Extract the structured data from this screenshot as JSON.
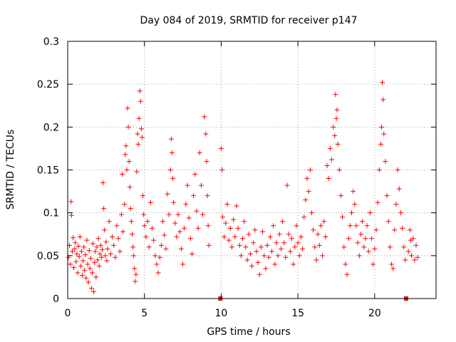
{
  "chart_data": {
    "type": "scatter",
    "title": "Day 084 of 2019, SRMTID for receiver p147",
    "xlabel": "GPS time / hours",
    "ylabel": "SRMTID / TECUs",
    "xlim": [
      0,
      24
    ],
    "ylim": [
      0,
      0.3
    ],
    "xticks": [
      0,
      5,
      10,
      15,
      20
    ],
    "yticks": [
      0,
      0.05,
      0.1,
      0.15,
      0.2,
      0.25,
      0.3
    ],
    "xtick_labels": [
      "0",
      "5",
      "10",
      "15",
      "20"
    ],
    "ytick_labels": [
      "0",
      "0.05",
      "0.1",
      "0.15",
      "0.2",
      "0.25",
      "0.3"
    ],
    "grid": true,
    "marker": "+",
    "color": "#ff0000",
    "gap_markers": [
      {
        "x": 9.95,
        "y": 0
      },
      {
        "x": 22.05,
        "y": 0
      }
    ],
    "series": [
      {
        "name": "SRMTID",
        "points": [
          [
            0.05,
            0.048
          ],
          [
            0.12,
            0.062
          ],
          [
            0.18,
            0.04
          ],
          [
            0.22,
            0.113
          ],
          [
            0.25,
            0.097
          ],
          [
            0.3,
            0.055
          ],
          [
            0.35,
            0.071
          ],
          [
            0.4,
            0.036
          ],
          [
            0.45,
            0.058
          ],
          [
            0.5,
            0.065
          ],
          [
            0.55,
            0.043
          ],
          [
            0.6,
            0.052
          ],
          [
            0.65,
            0.03
          ],
          [
            0.7,
            0.061
          ],
          [
            0.75,
            0.049
          ],
          [
            0.8,
            0.072
          ],
          [
            0.85,
            0.038
          ],
          [
            0.9,
            0.055
          ],
          [
            0.95,
            0.027
          ],
          [
            1.0,
            0.044
          ],
          [
            1.05,
            0.06
          ],
          [
            1.1,
            0.033
          ],
          [
            1.15,
            0.051
          ],
          [
            1.2,
            0.024
          ],
          [
            1.25,
            0.068
          ],
          [
            1.3,
            0.04
          ],
          [
            1.35,
            0.019
          ],
          [
            1.4,
            0.056
          ],
          [
            1.45,
            0.035
          ],
          [
            1.5,
            0.047
          ],
          [
            1.55,
            0.012
          ],
          [
            1.6,
            0.03
          ],
          [
            1.65,
            0.064
          ],
          [
            1.7,
            0.008
          ],
          [
            1.75,
            0.042
          ],
          [
            1.8,
            0.055
          ],
          [
            1.85,
            0.025
          ],
          [
            1.9,
            0.06
          ],
          [
            1.95,
            0.045
          ],
          [
            2.0,
            0.07
          ],
          [
            2.05,
            0.038
          ],
          [
            2.1,
            0.052
          ],
          [
            2.15,
            0.062
          ],
          [
            2.2,
            0.048
          ],
          [
            2.25,
            0.057
          ],
          [
            2.3,
            0.135
          ],
          [
            2.35,
            0.105
          ],
          [
            2.4,
            0.08
          ],
          [
            2.45,
            0.05
          ],
          [
            2.5,
            0.066
          ],
          [
            2.55,
            0.044
          ],
          [
            2.6,
            0.058
          ],
          [
            2.7,
            0.09
          ],
          [
            2.8,
            0.052
          ],
          [
            2.9,
            0.072
          ],
          [
            3.0,
            0.062
          ],
          [
            3.1,
            0.048
          ],
          [
            3.2,
            0.085
          ],
          [
            3.3,
            0.07
          ],
          [
            3.4,
            0.055
          ],
          [
            3.5,
            0.098
          ],
          [
            3.55,
            0.145
          ],
          [
            3.6,
            0.078
          ],
          [
            3.7,
            0.11
          ],
          [
            3.75,
            0.168
          ],
          [
            3.8,
            0.178
          ],
          [
            3.85,
            0.15
          ],
          [
            3.9,
            0.222
          ],
          [
            3.95,
            0.2
          ],
          [
            4.0,
            0.16
          ],
          [
            4.05,
            0.13
          ],
          [
            4.1,
            0.105
          ],
          [
            4.15,
            0.09
          ],
          [
            4.2,
            0.075
          ],
          [
            4.25,
            0.06
          ],
          [
            4.3,
            0.05
          ],
          [
            4.35,
            0.035
          ],
          [
            4.4,
            0.02
          ],
          [
            4.45,
            0.028
          ],
          [
            4.5,
            0.148
          ],
          [
            4.55,
            0.192
          ],
          [
            4.6,
            0.18
          ],
          [
            4.65,
            0.21
          ],
          [
            4.7,
            0.242
          ],
          [
            4.75,
            0.23
          ],
          [
            4.8,
            0.198
          ],
          [
            4.85,
            0.188
          ],
          [
            4.9,
            0.12
          ],
          [
            4.95,
            0.098
          ],
          [
            5.0,
            0.085
          ],
          [
            5.1,
            0.072
          ],
          [
            5.2,
            0.09
          ],
          [
            5.3,
            0.06
          ],
          [
            5.4,
            0.112
          ],
          [
            5.5,
            0.082
          ],
          [
            5.6,
            0.068
          ],
          [
            5.7,
            0.05
          ],
          [
            5.8,
            0.04
          ],
          [
            5.9,
            0.03
          ],
          [
            6.0,
            0.048
          ],
          [
            6.1,
            0.062
          ],
          [
            6.2,
            0.09
          ],
          [
            6.3,
            0.074
          ],
          [
            6.4,
            0.058
          ],
          [
            6.5,
            0.122
          ],
          [
            6.6,
            0.098
          ],
          [
            6.7,
            0.15
          ],
          [
            6.75,
            0.186
          ],
          [
            6.8,
            0.17
          ],
          [
            6.85,
            0.14
          ],
          [
            6.9,
            0.112
          ],
          [
            7.0,
            0.088
          ],
          [
            7.1,
            0.072
          ],
          [
            7.2,
            0.098
          ],
          [
            7.3,
            0.078
          ],
          [
            7.4,
            0.058
          ],
          [
            7.5,
            0.04
          ],
          [
            7.6,
            0.082
          ],
          [
            7.7,
            0.11
          ],
          [
            7.8,
            0.132
          ],
          [
            7.9,
            0.094
          ],
          [
            8.0,
            0.07
          ],
          [
            8.1,
            0.052
          ],
          [
            8.2,
            0.12
          ],
          [
            8.3,
            0.145
          ],
          [
            8.4,
            0.102
          ],
          [
            8.5,
            0.082
          ],
          [
            8.6,
            0.17
          ],
          [
            8.7,
            0.132
          ],
          [
            8.8,
            0.098
          ],
          [
            8.9,
            0.212
          ],
          [
            9.0,
            0.192
          ],
          [
            9.05,
            0.16
          ],
          [
            9.1,
            0.12
          ],
          [
            9.15,
            0.085
          ],
          [
            9.2,
            0.062
          ],
          [
            10.0,
            0.175
          ],
          [
            10.05,
            0.15
          ],
          [
            10.1,
            0.095
          ],
          [
            10.2,
            0.072
          ],
          [
            10.3,
            0.088
          ],
          [
            10.4,
            0.11
          ],
          [
            10.5,
            0.068
          ],
          [
            10.6,
            0.082
          ],
          [
            10.7,
            0.06
          ],
          [
            10.8,
            0.092
          ],
          [
            10.9,
            0.072
          ],
          [
            11.0,
            0.108
          ],
          [
            11.1,
            0.082
          ],
          [
            11.2,
            0.062
          ],
          [
            11.3,
            0.05
          ],
          [
            11.4,
            0.07
          ],
          [
            11.5,
            0.09
          ],
          [
            11.6,
            0.06
          ],
          [
            11.7,
            0.045
          ],
          [
            11.8,
            0.075
          ],
          [
            11.9,
            0.052
          ],
          [
            12.0,
            0.038
          ],
          [
            12.1,
            0.065
          ],
          [
            12.2,
            0.08
          ],
          [
            12.3,
            0.055
          ],
          [
            12.4,
            0.042
          ],
          [
            12.5,
            0.028
          ],
          [
            12.6,
            0.06
          ],
          [
            12.7,
            0.078
          ],
          [
            12.8,
            0.05
          ],
          [
            12.9,
            0.035
          ],
          [
            13.0,
            0.062
          ],
          [
            13.1,
            0.048
          ],
          [
            13.2,
            0.072
          ],
          [
            13.3,
            0.055
          ],
          [
            13.4,
            0.085
          ],
          [
            13.5,
            0.04
          ],
          [
            13.6,
            0.065
          ],
          [
            13.7,
            0.05
          ],
          [
            13.8,
            0.075
          ],
          [
            13.9,
            0.058
          ],
          [
            14.0,
            0.09
          ],
          [
            14.1,
            0.065
          ],
          [
            14.2,
            0.048
          ],
          [
            14.3,
            0.132
          ],
          [
            14.4,
            0.075
          ],
          [
            14.5,
            0.055
          ],
          [
            14.6,
            0.07
          ],
          [
            14.7,
            0.04
          ],
          [
            14.8,
            0.06
          ],
          [
            14.9,
            0.085
          ],
          [
            15.0,
            0.065
          ],
          [
            15.1,
            0.05
          ],
          [
            15.2,
            0.072
          ],
          [
            15.3,
            0.058
          ],
          [
            15.4,
            0.095
          ],
          [
            15.5,
            0.115
          ],
          [
            15.6,
            0.14
          ],
          [
            15.7,
            0.125
          ],
          [
            15.8,
            0.15
          ],
          [
            15.9,
            0.1
          ],
          [
            16.0,
            0.08
          ],
          [
            16.1,
            0.06
          ],
          [
            16.2,
            0.045
          ],
          [
            16.3,
            0.075
          ],
          [
            16.4,
            0.062
          ],
          [
            16.5,
            0.085
          ],
          [
            16.6,
            0.05
          ],
          [
            16.7,
            0.09
          ],
          [
            16.8,
            0.072
          ],
          [
            16.9,
            0.155
          ],
          [
            17.0,
            0.14
          ],
          [
            17.1,
            0.175
          ],
          [
            17.2,
            0.162
          ],
          [
            17.3,
            0.2
          ],
          [
            17.4,
            0.19
          ],
          [
            17.45,
            0.238
          ],
          [
            17.5,
            0.21
          ],
          [
            17.55,
            0.22
          ],
          [
            17.6,
            0.18
          ],
          [
            17.7,
            0.15
          ],
          [
            17.8,
            0.12
          ],
          [
            17.9,
            0.095
          ],
          [
            18.0,
            0.06
          ],
          [
            18.1,
            0.04
          ],
          [
            18.2,
            0.028
          ],
          [
            18.3,
            0.07
          ],
          [
            18.4,
            0.085
          ],
          [
            18.5,
            0.1
          ],
          [
            18.6,
            0.125
          ],
          [
            18.7,
            0.11
          ],
          [
            18.8,
            0.085
          ],
          [
            18.9,
            0.065
          ],
          [
            19.0,
            0.05
          ],
          [
            19.1,
            0.075
          ],
          [
            19.2,
            0.09
          ],
          [
            19.3,
            0.06
          ],
          [
            19.4,
            0.07
          ],
          [
            19.5,
            0.085
          ],
          [
            19.6,
            0.055
          ],
          [
            19.7,
            0.1
          ],
          [
            19.8,
            0.07
          ],
          [
            19.9,
            0.04
          ],
          [
            20.0,
            0.058
          ],
          [
            20.1,
            0.08
          ],
          [
            20.2,
            0.112
          ],
          [
            20.3,
            0.15
          ],
          [
            20.4,
            0.18
          ],
          [
            20.45,
            0.2
          ],
          [
            20.5,
            0.252
          ],
          [
            20.55,
            0.232
          ],
          [
            20.6,
            0.192
          ],
          [
            20.7,
            0.16
          ],
          [
            20.8,
            0.12
          ],
          [
            20.9,
            0.09
          ],
          [
            21.0,
            0.06
          ],
          [
            21.1,
            0.04
          ],
          [
            21.2,
            0.035
          ],
          [
            21.3,
            0.08
          ],
          [
            21.4,
            0.11
          ],
          [
            21.5,
            0.15
          ],
          [
            21.6,
            0.128
          ],
          [
            21.7,
            0.1
          ],
          [
            21.8,
            0.082
          ],
          [
            21.9,
            0.06
          ],
          [
            22.0,
            0.045
          ],
          [
            22.2,
            0.055
          ],
          [
            22.3,
            0.08
          ],
          [
            22.35,
            0.068
          ],
          [
            22.4,
            0.05
          ],
          [
            22.5,
            0.07
          ],
          [
            22.6,
            0.045
          ],
          [
            22.7,
            0.062
          ],
          [
            22.8,
            0.048
          ]
        ]
      }
    ]
  }
}
